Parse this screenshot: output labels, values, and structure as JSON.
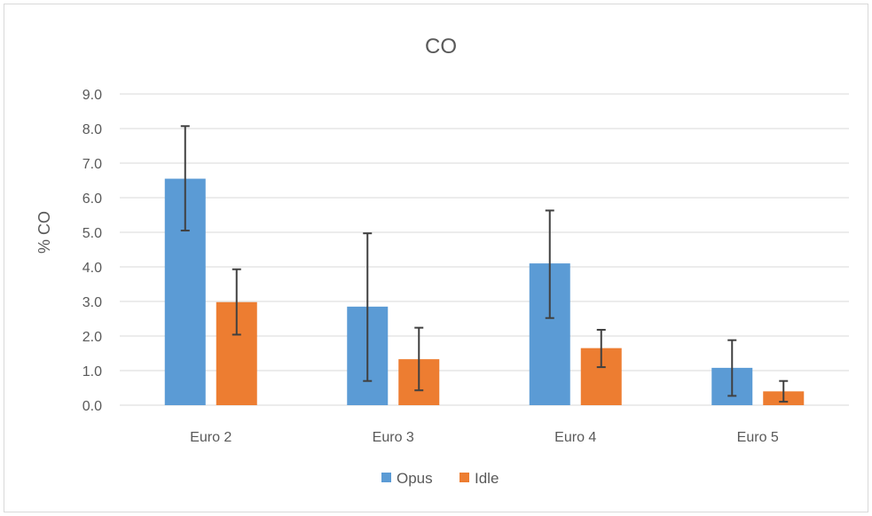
{
  "chart_data": {
    "type": "bar",
    "title": "CO",
    "xlabel": "",
    "ylabel": "% CO",
    "ylim": [
      0,
      9
    ],
    "yticks": [
      "0.0",
      "1.0",
      "2.0",
      "3.0",
      "4.0",
      "5.0",
      "6.0",
      "7.0",
      "8.0",
      "9.0"
    ],
    "categories": [
      "Euro 2",
      "Euro 3",
      "Euro 4",
      "Euro 5"
    ],
    "series": [
      {
        "name": "Opus",
        "color": "#5b9bd5",
        "values": [
          6.55,
          2.85,
          4.1,
          1.08
        ],
        "error_low": [
          5.05,
          0.7,
          2.52,
          0.27
        ],
        "error_high": [
          8.07,
          4.97,
          5.63,
          1.88
        ]
      },
      {
        "name": "Idle",
        "color": "#ed7d31",
        "values": [
          2.98,
          1.33,
          1.65,
          0.4
        ],
        "error_low": [
          2.04,
          0.43,
          1.1,
          0.1
        ],
        "error_high": [
          3.93,
          2.24,
          2.18,
          0.7
        ]
      }
    ],
    "grid": true,
    "legend_position": "bottom",
    "error_bar_color": "#404040",
    "grid_color": "#d9d9d9"
  }
}
